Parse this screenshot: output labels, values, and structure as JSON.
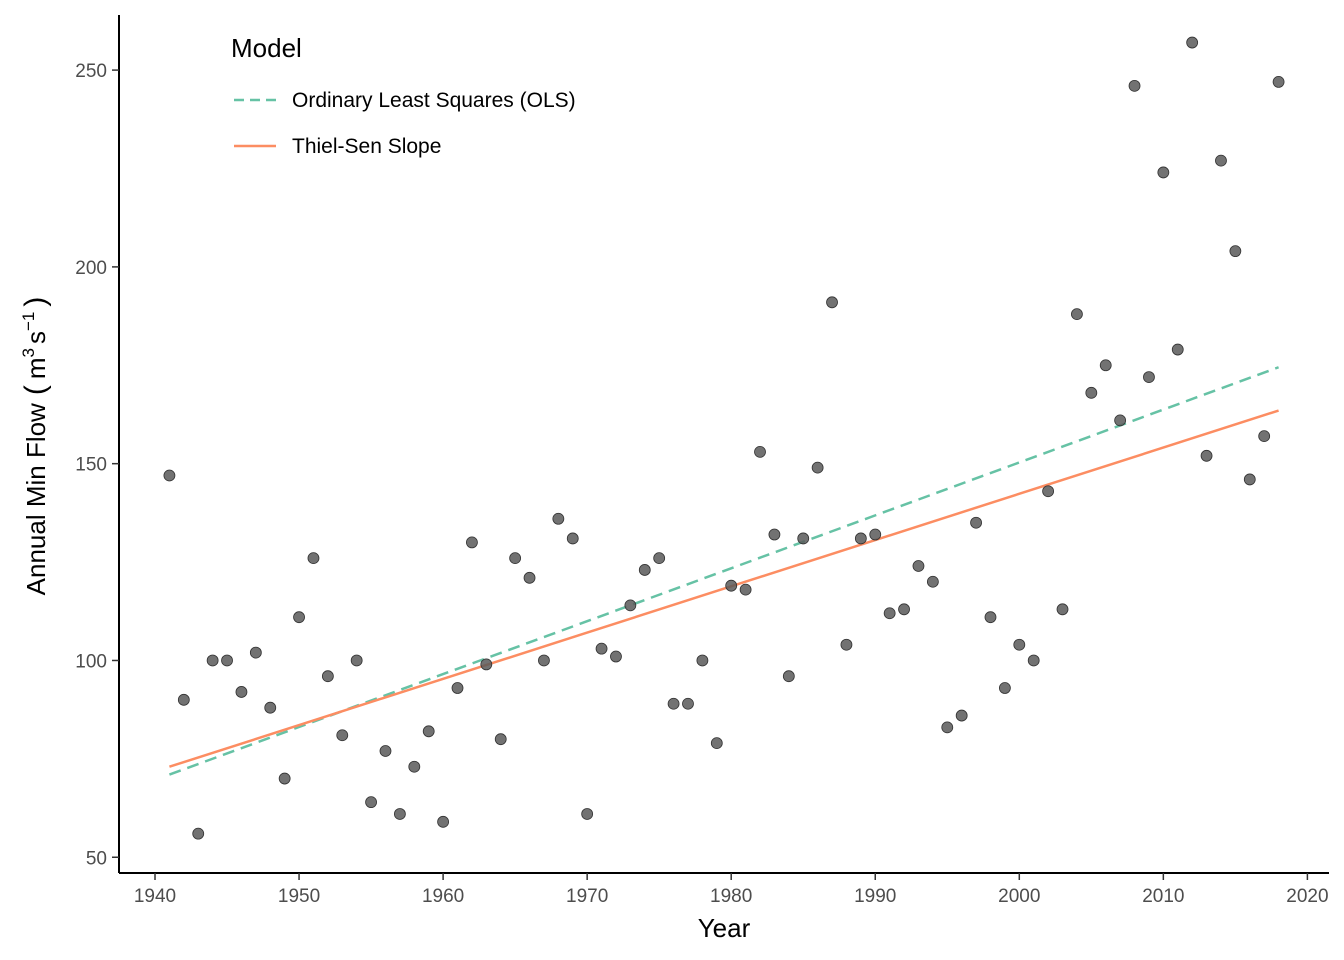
{
  "chart_data": {
    "type": "scatter",
    "xlabel": "Year",
    "ylabel": "Annual Min Flow",
    "ylabel_unit": {
      "open": "(",
      "base1": "m",
      "sup1": "3",
      "base2": "s",
      "sup2": "−1",
      "close": ")"
    },
    "xlim": [
      1937.5,
      2021.5
    ],
    "ylim": [
      46,
      264
    ],
    "x_ticks": [
      1940,
      1950,
      1960,
      1970,
      1980,
      1990,
      2000,
      2010,
      2020
    ],
    "y_ticks": [
      50,
      100,
      150,
      200,
      250
    ],
    "x_tick_labels": [
      "1940",
      "1950",
      "1960",
      "1970",
      "1980",
      "1990",
      "2000",
      "2010",
      "2020"
    ],
    "y_tick_labels": [
      "50",
      "100",
      "150",
      "200",
      "250"
    ],
    "grid": false,
    "legend": {
      "title": "Model",
      "position": "top-left"
    },
    "points": {
      "color": "#595959",
      "x": [
        1941,
        1942,
        1943,
        1944,
        1945,
        1946,
        1947,
        1948,
        1949,
        1950,
        1951,
        1952,
        1953,
        1954,
        1955,
        1956,
        1957,
        1958,
        1959,
        1960,
        1961,
        1962,
        1963,
        1964,
        1965,
        1966,
        1967,
        1968,
        1969,
        1970,
        1971,
        1972,
        1973,
        1974,
        1975,
        1976,
        1977,
        1978,
        1979,
        1980,
        1981,
        1982,
        1983,
        1984,
        1985,
        1986,
        1987,
        1988,
        1989,
        1990,
        1991,
        1992,
        1993,
        1994,
        1995,
        1996,
        1997,
        1998,
        1999,
        2000,
        2001,
        2002,
        2003,
        2004,
        2005,
        2006,
        2007,
        2008,
        2009,
        2010,
        2011,
        2012,
        2013,
        2014,
        2015,
        2016,
        2017,
        2018
      ],
      "y": [
        147,
        90,
        56,
        100,
        100,
        92,
        102,
        88,
        70,
        111,
        126,
        96,
        81,
        100,
        64,
        77,
        61,
        73,
        82,
        59,
        93,
        130,
        99,
        80,
        126,
        121,
        100,
        136,
        131,
        61,
        103,
        101,
        114,
        123,
        126,
        89,
        89,
        100,
        79,
        119,
        118,
        153,
        132,
        96,
        131,
        149,
        191,
        104,
        131,
        132,
        112,
        113,
        124,
        120,
        83,
        86,
        135,
        111,
        93,
        104,
        100,
        143,
        113,
        188,
        168,
        175,
        161,
        246,
        172,
        224,
        179,
        257,
        152,
        227,
        204,
        146,
        157,
        247
      ]
    },
    "series": [
      {
        "name": "Ordinary Least Squares (OLS)",
        "color": "#66c2a5",
        "dash": true,
        "x": [
          1941,
          2018
        ],
        "y": [
          71,
          174.5
        ]
      },
      {
        "name": "Thiel-Sen Slope",
        "color": "#fc8d62",
        "dash": false,
        "x": [
          1941,
          2018
        ],
        "y": [
          73,
          163.5
        ]
      }
    ]
  }
}
